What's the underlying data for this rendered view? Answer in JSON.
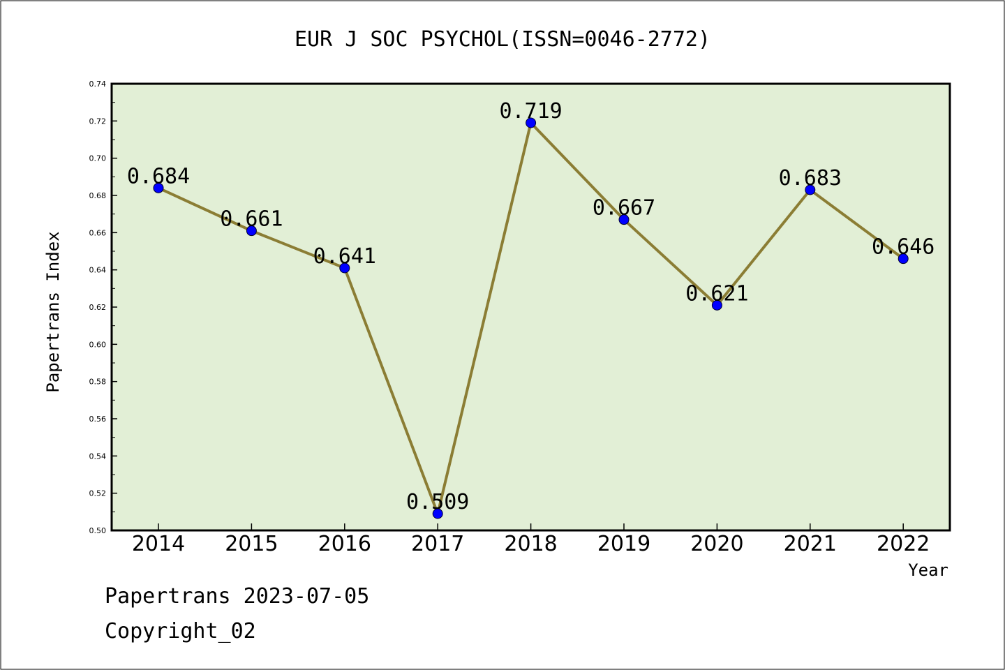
{
  "chart_data": {
    "type": "line",
    "title": "EUR J SOC PSYCHOL(ISSN=0046-2772)",
    "xlabel": "Year",
    "ylabel": "Papertrans Index",
    "categories": [
      "2014",
      "2015",
      "2016",
      "2017",
      "2018",
      "2019",
      "2020",
      "2021",
      "2022"
    ],
    "values": [
      0.684,
      0.661,
      0.641,
      0.509,
      0.719,
      0.667,
      0.621,
      0.683,
      0.646
    ],
    "value_labels": [
      "0.684",
      "0.661",
      "0.641",
      "0.509",
      "0.719",
      "0.667",
      "0.621",
      "0.683",
      "0.646"
    ],
    "ylim": [
      0.5,
      0.74
    ],
    "yticks": [
      "0.50",
      "0.52",
      "0.54",
      "0.56",
      "0.58",
      "0.60",
      "0.62",
      "0.64",
      "0.66",
      "0.68",
      "0.70",
      "0.72",
      "0.74"
    ],
    "grid": false,
    "colors": {
      "plot_background": "#e2efd6",
      "line": "#8b7d34",
      "marker": "#0000ff",
      "axes": "#000000"
    }
  },
  "footer": {
    "line1": "Papertrans 2023-07-05",
    "line2": "Copyright_02"
  }
}
